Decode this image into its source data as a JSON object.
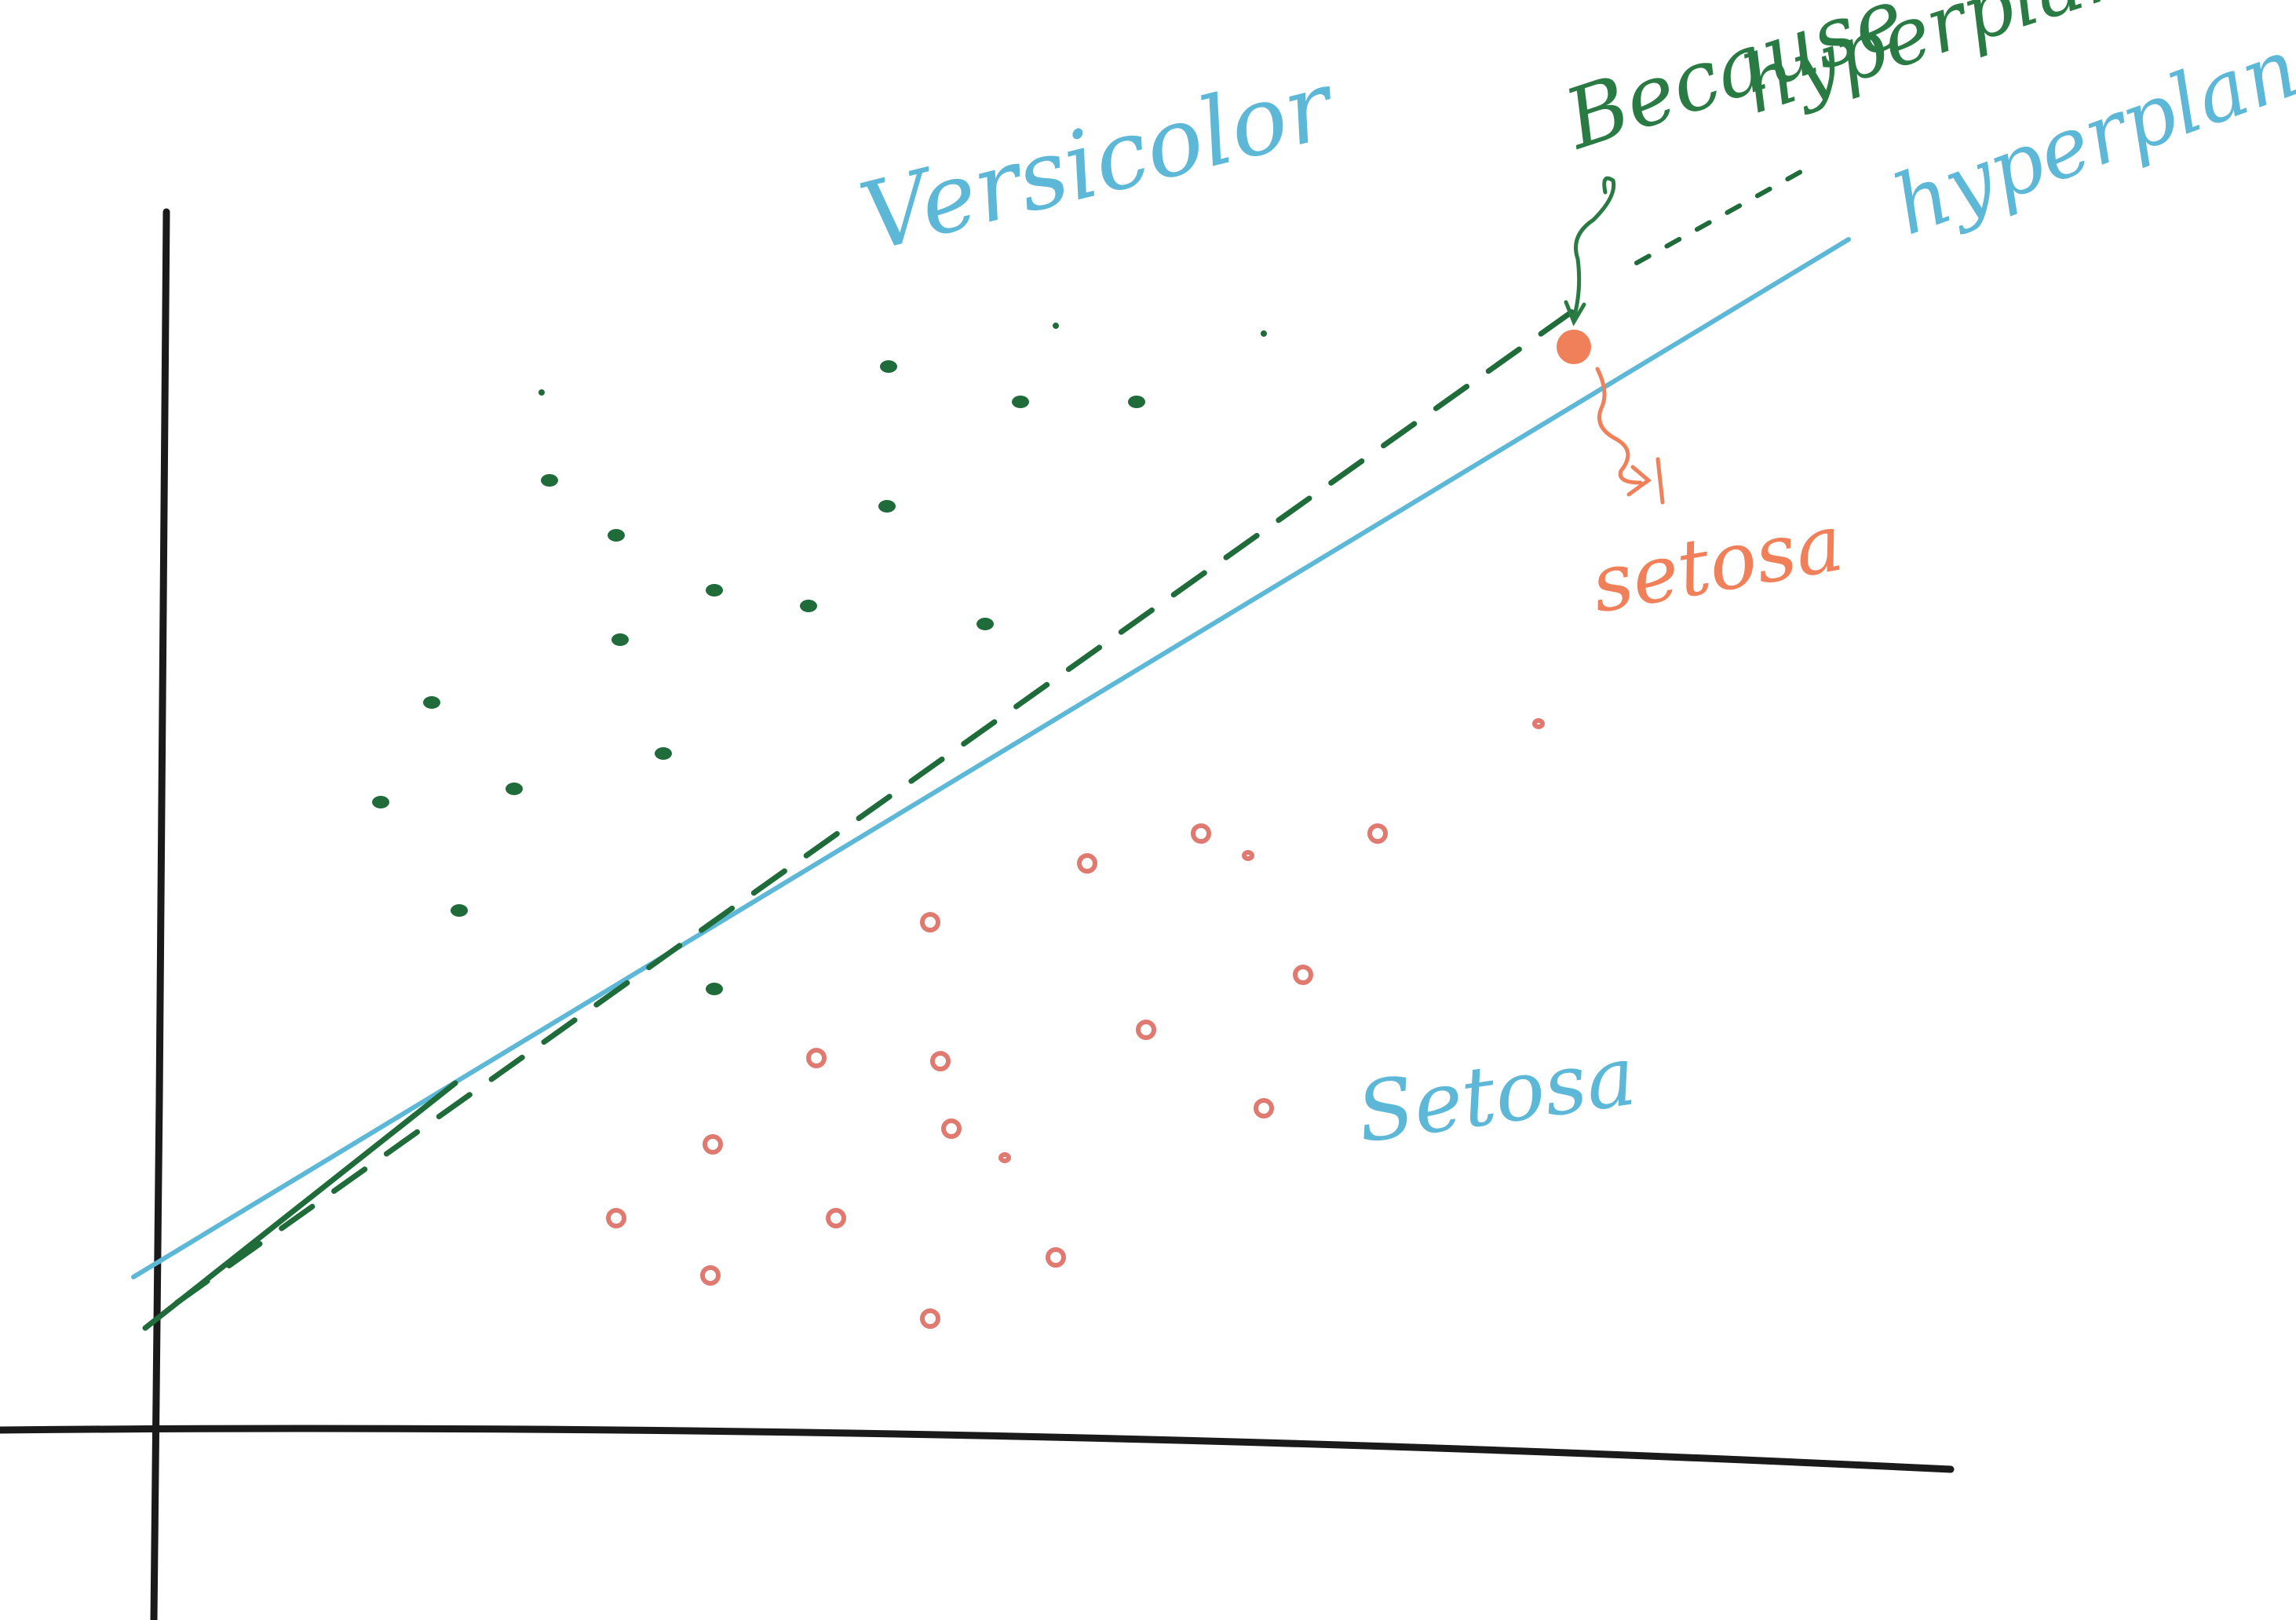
{
  "labels": {
    "versicolor": "Versicolor",
    "setosa_region": "Setosa",
    "setosa_point": "setosa",
    "hyperplane": "hyperplane",
    "because_line1": "Because",
    "because_line2": "hyperplane is"
  },
  "colors": {
    "axis": "#1a1a1a",
    "hyperplane": "#5cb8d6",
    "versicolor": "#1f6b3a",
    "setosa": "#e07a70",
    "setosa_highlight": "#f0805a",
    "annotation": "#2a7a44"
  },
  "points": {
    "versicolor_count": 19,
    "setosa_count": 19
  }
}
